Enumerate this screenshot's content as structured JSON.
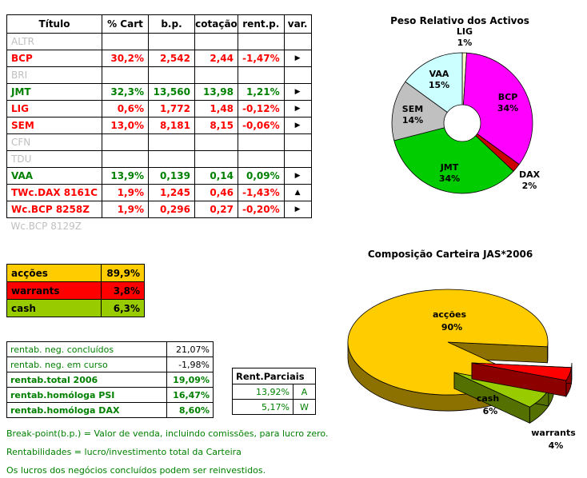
{
  "portfolio_table": {
    "headers": [
      "Título",
      "% Cart",
      "b.p.",
      "cotação",
      "rent.p.",
      "var."
    ],
    "rows": [
      {
        "titulo": "ALTR",
        "pct_cart": "",
        "bp": "",
        "cotacao": "",
        "rent_p": "",
        "var_icon": "",
        "state": "inactive",
        "borderless": false
      },
      {
        "titulo": "BCP",
        "pct_cart": "30,2%",
        "bp": "2,542",
        "cotacao": "2,44",
        "rent_p": "-1,47%",
        "var_icon": "▶",
        "state": "loss",
        "borderless": false
      },
      {
        "titulo": "BRI",
        "pct_cart": "",
        "bp": "",
        "cotacao": "",
        "rent_p": "",
        "var_icon": "",
        "state": "inactive",
        "borderless": false
      },
      {
        "titulo": "JMT",
        "pct_cart": "32,3%",
        "bp": "13,560",
        "cotacao": "13,98",
        "rent_p": "1,21%",
        "var_icon": "▶",
        "state": "gain",
        "borderless": false
      },
      {
        "titulo": "LIG",
        "pct_cart": "0,6%",
        "bp": "1,772",
        "cotacao": "1,48",
        "rent_p": "-0,12%",
        "var_icon": "▶",
        "state": "loss",
        "borderless": false
      },
      {
        "titulo": "SEM",
        "pct_cart": "13,0%",
        "bp": "8,181",
        "cotacao": "8,15",
        "rent_p": "-0,06%",
        "var_icon": "▶",
        "state": "loss",
        "borderless": false
      },
      {
        "titulo": "CFN",
        "pct_cart": "",
        "bp": "",
        "cotacao": "",
        "rent_p": "",
        "var_icon": "",
        "state": "inactive",
        "borderless": false
      },
      {
        "titulo": "TDU",
        "pct_cart": "",
        "bp": "",
        "cotacao": "",
        "rent_p": "",
        "var_icon": "",
        "state": "inactive",
        "borderless": false
      },
      {
        "titulo": "VAA",
        "pct_cart": "13,9%",
        "bp": "0,139",
        "cotacao": "0,14",
        "rent_p": "0,09%",
        "var_icon": "▶",
        "state": "gain",
        "borderless": false
      },
      {
        "titulo": "TWc.DAX 8161C",
        "pct_cart": "1,9%",
        "bp": "1,245",
        "cotacao": "0,46",
        "rent_p": "-1,43%",
        "var_icon": "▲",
        "state": "loss",
        "borderless": false
      },
      {
        "titulo": "Wc.BCP 8258Z",
        "pct_cart": "1,9%",
        "bp": "0,296",
        "cotacao": "0,27",
        "rent_p": "-0,20%",
        "var_icon": "▶",
        "state": "loss",
        "borderless": false
      },
      {
        "titulo": "Wc.BCP 8129Z",
        "pct_cart": "",
        "bp": "",
        "cotacao": "",
        "rent_p": "",
        "var_icon": "",
        "state": "inactive",
        "borderless": true
      }
    ]
  },
  "allocation_table": {
    "rows": [
      {
        "label": "acções",
        "value": "89,9%",
        "color": "#FFCC00"
      },
      {
        "label": "warrants",
        "value": "3,8%",
        "color": "#FF0000"
      },
      {
        "label": "cash",
        "value": "6,3%",
        "color": "#99CC00"
      }
    ]
  },
  "returns_table": {
    "rows": [
      {
        "label": "rentab. neg. concluídos",
        "value": "21,07%",
        "bold": false
      },
      {
        "label": "rentab. neg. em curso",
        "value": "-1,98%",
        "bold": false
      },
      {
        "label": "rentab.total 2006",
        "value": "19,09%",
        "bold": true
      },
      {
        "label": "rentab.homóloga PSI",
        "value": "16,47%",
        "bold": true
      },
      {
        "label": "rentab.homóloga DAX",
        "value": "8,60%",
        "bold": true
      }
    ]
  },
  "partials_table": {
    "header": "Rent.Parciais",
    "rows": [
      {
        "value": "13,92%",
        "code": "A"
      },
      {
        "value": "5,17%",
        "code": "W"
      }
    ]
  },
  "notes": [
    "Break-point(b.p.) = Valor de venda, incluindo comissões, para lucro zero.",
    "Rentabilidades = lucro/investimento total da Carteira",
    "Os lucros dos negócios concluídos podem ser reinvestidos."
  ],
  "chart_data": [
    {
      "type": "pie",
      "subtype": "donut",
      "title": "Peso Relativo dos Activos",
      "labels": [
        "LIG",
        "BCP",
        "DAX",
        "JMT",
        "SEM",
        "VAA"
      ],
      "values": [
        1,
        34,
        2,
        34,
        14,
        15
      ],
      "colors": [
        "#FFFFCC",
        "#FF00FF",
        "#CC0000",
        "#00CC00",
        "#C0C0C0",
        "#CCFFFF"
      ],
      "label_pos": [
        "out",
        "in",
        "out",
        "in",
        "in",
        "in"
      ],
      "start_angle": 0,
      "legend": "none"
    },
    {
      "type": "pie",
      "subtype": "pie3d-exploded",
      "title": "Composição Carteira JAS*2006",
      "labels": [
        "acções",
        "warrants",
        "cash"
      ],
      "values": [
        90,
        4,
        6
      ],
      "colors": [
        "#FFCC00",
        "#FF0000",
        "#99CC00"
      ],
      "exploded": [
        false,
        true,
        true
      ],
      "start_angle": 131,
      "legend": "none"
    }
  ]
}
